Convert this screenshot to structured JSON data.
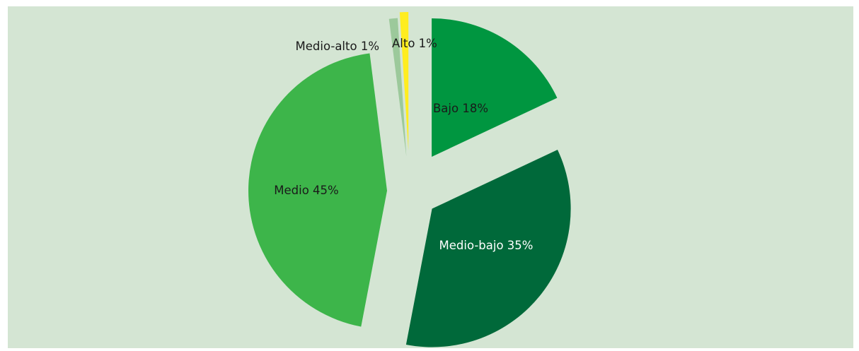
{
  "chart_data": {
    "type": "pie",
    "title": "",
    "slices": [
      {
        "label": "Bajo 18%",
        "name": "Bajo",
        "value": 18,
        "color": "#009640",
        "label_color": "#1a1a1a"
      },
      {
        "label": "Medio-bajo 35%",
        "name": "Medio-bajo",
        "value": 35,
        "color": "#00693a",
        "label_color": "#ffffff"
      },
      {
        "label": "Medio 45%",
        "name": "Medio",
        "value": 45,
        "color": "#3db54a",
        "label_color": "#1a1a1a"
      },
      {
        "label": "Medio-alto 1%",
        "name": "Medio-alto",
        "value": 1,
        "color": "#9cc99b",
        "label_color": "#1a1a1a"
      },
      {
        "label": "Alto 1%",
        "name": "Alto",
        "value": 1,
        "color": "#ffed1f",
        "label_color": "#1a1a1a"
      }
    ],
    "exploded": true,
    "legend": "none",
    "background_color": "#d4e5d3"
  }
}
